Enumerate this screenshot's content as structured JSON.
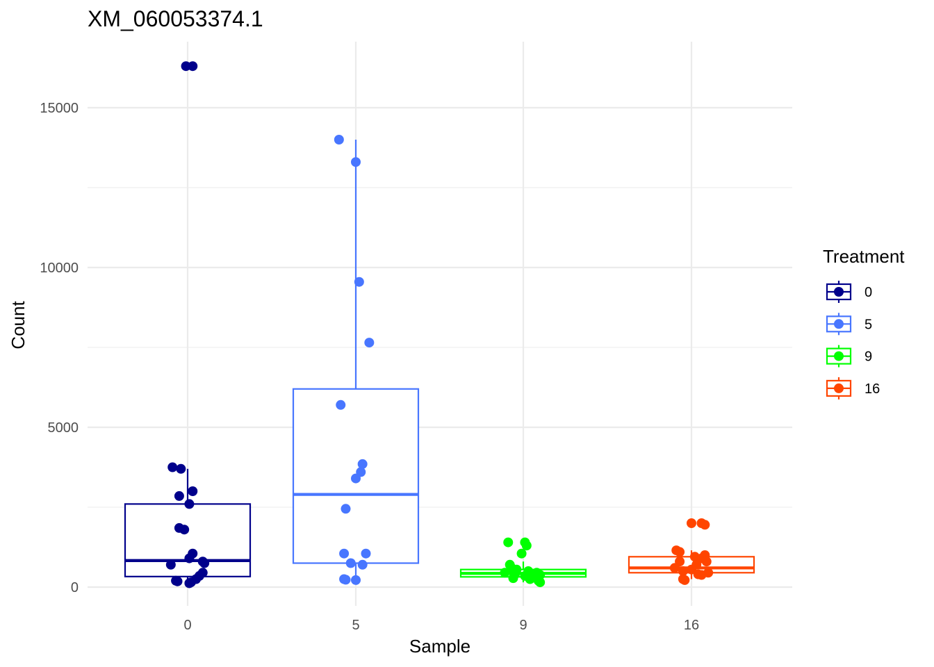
{
  "chart_data": {
    "type": "box",
    "title": "XM_060053374.1",
    "xlabel": "Sample",
    "ylabel": "Count",
    "categories": [
      "0",
      "5",
      "9",
      "16"
    ],
    "y_ticks": [
      0,
      5000,
      10000,
      15000
    ],
    "ylim": [
      -600,
      17000
    ],
    "grid": true,
    "legend": {
      "title": "Treatment",
      "position": "right",
      "entries": [
        {
          "label": "0",
          "color": "#00008B"
        },
        {
          "label": "5",
          "color": "#4876FF"
        },
        {
          "label": "9",
          "color": "#00FF00"
        },
        {
          "label": "16",
          "color": "#FF4500"
        }
      ]
    },
    "series": [
      {
        "category": "0",
        "color": "#00008B",
        "box": {
          "whisker_low": 100,
          "q1": 330,
          "median": 830,
          "q3": 2600,
          "whisker_high": 3700
        },
        "points": [
          {
            "jitter": -0.01,
            "y": 16300
          },
          {
            "jitter": 0.03,
            "y": 16300
          },
          {
            "jitter": -0.09,
            "y": 3750
          },
          {
            "jitter": -0.04,
            "y": 3700
          },
          {
            "jitter": 0.03,
            "y": 3000
          },
          {
            "jitter": -0.05,
            "y": 2850
          },
          {
            "jitter": 0.01,
            "y": 2600
          },
          {
            "jitter": -0.05,
            "y": 1850
          },
          {
            "jitter": -0.02,
            "y": 1800
          },
          {
            "jitter": 0.03,
            "y": 1050
          },
          {
            "jitter": 0.01,
            "y": 900
          },
          {
            "jitter": 0.09,
            "y": 800
          },
          {
            "jitter": 0.1,
            "y": 750
          },
          {
            "jitter": -0.1,
            "y": 700
          },
          {
            "jitter": 0.09,
            "y": 450
          },
          {
            "jitter": 0.07,
            "y": 350
          },
          {
            "jitter": 0.05,
            "y": 250
          },
          {
            "jitter": -0.07,
            "y": 200
          },
          {
            "jitter": -0.06,
            "y": 180
          },
          {
            "jitter": 0.02,
            "y": 150
          },
          {
            "jitter": 0.01,
            "y": 120
          }
        ]
      },
      {
        "category": "5",
        "color": "#4876FF",
        "box": {
          "whisker_low": 200,
          "q1": 750,
          "median": 2900,
          "q3": 6200,
          "whisker_high": 14000
        },
        "points": [
          {
            "jitter": -0.1,
            "y": 14000
          },
          {
            "jitter": 0.0,
            "y": 13300
          },
          {
            "jitter": 0.02,
            "y": 9550
          },
          {
            "jitter": 0.08,
            "y": 7650
          },
          {
            "jitter": -0.09,
            "y": 5700
          },
          {
            "jitter": 0.04,
            "y": 3850
          },
          {
            "jitter": 0.03,
            "y": 3600
          },
          {
            "jitter": 0.0,
            "y": 3400
          },
          {
            "jitter": -0.06,
            "y": 2450
          },
          {
            "jitter": -0.07,
            "y": 1050
          },
          {
            "jitter": 0.06,
            "y": 1050
          },
          {
            "jitter": -0.03,
            "y": 750
          },
          {
            "jitter": 0.04,
            "y": 700
          },
          {
            "jitter": -0.07,
            "y": 250
          },
          {
            "jitter": -0.06,
            "y": 230
          },
          {
            "jitter": 0.0,
            "y": 220
          }
        ]
      },
      {
        "category": "9",
        "color": "#00FF00",
        "box": {
          "whisker_low": 150,
          "q1": 320,
          "median": 430,
          "q3": 550,
          "whisker_high": 800
        },
        "points": [
          {
            "jitter": -0.09,
            "y": 1400
          },
          {
            "jitter": 0.01,
            "y": 1400
          },
          {
            "jitter": 0.02,
            "y": 1300
          },
          {
            "jitter": -0.01,
            "y": 1050
          },
          {
            "jitter": -0.08,
            "y": 700
          },
          {
            "jitter": -0.07,
            "y": 600
          },
          {
            "jitter": -0.04,
            "y": 550
          },
          {
            "jitter": 0.03,
            "y": 500
          },
          {
            "jitter": -0.11,
            "y": 450
          },
          {
            "jitter": 0.08,
            "y": 450
          },
          {
            "jitter": -0.05,
            "y": 400
          },
          {
            "jitter": 0.1,
            "y": 380
          },
          {
            "jitter": 0.01,
            "y": 350
          },
          {
            "jitter": 0.05,
            "y": 330
          },
          {
            "jitter": 0.09,
            "y": 300
          },
          {
            "jitter": -0.06,
            "y": 280
          },
          {
            "jitter": 0.04,
            "y": 250
          },
          {
            "jitter": 0.09,
            "y": 200
          },
          {
            "jitter": 0.1,
            "y": 150
          }
        ]
      },
      {
        "category": "16",
        "color": "#FF4500",
        "box": {
          "whisker_low": 250,
          "q1": 450,
          "median": 600,
          "q3": 950,
          "whisker_high": 1150
        },
        "points": [
          {
            "jitter": 0.0,
            "y": 2000
          },
          {
            "jitter": 0.06,
            "y": 2000
          },
          {
            "jitter": 0.08,
            "y": 1950
          },
          {
            "jitter": -0.09,
            "y": 1150
          },
          {
            "jitter": -0.07,
            "y": 1100
          },
          {
            "jitter": 0.08,
            "y": 1000
          },
          {
            "jitter": 0.02,
            "y": 950
          },
          {
            "jitter": 0.06,
            "y": 900
          },
          {
            "jitter": -0.07,
            "y": 800
          },
          {
            "jitter": 0.09,
            "y": 800
          },
          {
            "jitter": 0.03,
            "y": 700
          },
          {
            "jitter": -0.1,
            "y": 600
          },
          {
            "jitter": 0.0,
            "y": 550
          },
          {
            "jitter": -0.05,
            "y": 500
          },
          {
            "jitter": 0.1,
            "y": 450
          },
          {
            "jitter": 0.04,
            "y": 400
          },
          {
            "jitter": 0.06,
            "y": 380
          },
          {
            "jitter": -0.05,
            "y": 250
          },
          {
            "jitter": -0.04,
            "y": 220
          }
        ]
      }
    ]
  }
}
